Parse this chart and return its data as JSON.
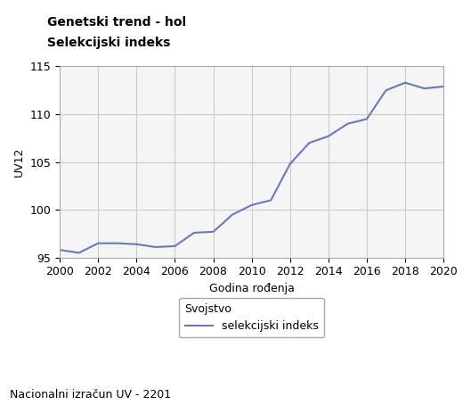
{
  "title_line1": "Genetski trend - hol",
  "title_line2": "Selekcijski indeks",
  "xlabel": "Godina rođenja",
  "ylabel": "UV12",
  "footnote": "Nacionalni izračun UV - 2201",
  "legend_label": "selekcijski indeks",
  "legend_category": "Svojstvo",
  "x": [
    2000,
    2001,
    2002,
    2003,
    2004,
    2005,
    2006,
    2007,
    2008,
    2009,
    2010,
    2011,
    2012,
    2013,
    2014,
    2015,
    2016,
    2017,
    2018,
    2019,
    2020
  ],
  "y": [
    95.8,
    95.5,
    96.5,
    96.5,
    96.4,
    96.1,
    96.2,
    97.6,
    97.7,
    99.5,
    100.5,
    101.0,
    104.8,
    107.0,
    107.7,
    109.0,
    109.5,
    112.5,
    113.3,
    112.7,
    112.9
  ],
  "line_color": "#6b7ab5",
  "line_width": 1.5,
  "xlim": [
    2000,
    2020
  ],
  "ylim": [
    95,
    115
  ],
  "xticks": [
    2000,
    2002,
    2004,
    2006,
    2008,
    2010,
    2012,
    2014,
    2016,
    2018,
    2020
  ],
  "yticks": [
    95,
    100,
    105,
    110,
    115
  ],
  "grid_color": "#cccccc",
  "background_color": "#ffffff",
  "plot_bg_color": "#f5f5f5",
  "title_fontsize": 10,
  "axis_label_fontsize": 9,
  "tick_fontsize": 9,
  "legend_fontsize": 9,
  "footnote_fontsize": 9
}
